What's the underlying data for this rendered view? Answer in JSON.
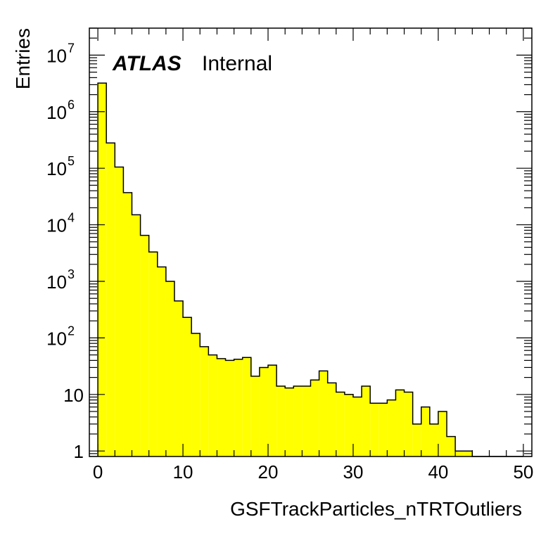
{
  "chart_data": {
    "type": "histogram",
    "x": [
      0,
      1,
      2,
      3,
      4,
      5,
      6,
      7,
      8,
      9,
      10,
      11,
      12,
      13,
      14,
      15,
      16,
      17,
      18,
      19,
      20,
      21,
      22,
      23,
      24,
      25,
      26,
      27,
      28,
      29,
      30,
      31,
      32,
      33,
      34,
      35,
      36,
      37,
      38,
      39,
      40,
      41,
      42,
      43,
      44,
      45,
      46,
      47,
      48,
      49
    ],
    "values": [
      3200000,
      280000,
      105000,
      37000,
      15000,
      6500,
      3300,
      1800,
      1000,
      450,
      230,
      120,
      70,
      50,
      43,
      40,
      42,
      45,
      21,
      30,
      33,
      14,
      13,
      14,
      14,
      18,
      26,
      16,
      11,
      10,
      9,
      14,
      7,
      7,
      8,
      12,
      11,
      3,
      6,
      3,
      5,
      1.8,
      1,
      1,
      0,
      0,
      0,
      0,
      0,
      0
    ],
    "bin_width": 1,
    "xlim": [
      -1,
      51
    ],
    "ylim": [
      0.8,
      30000000
    ],
    "ylog": true,
    "xlabel": "GSFTrackParticles_nTRTOutliers",
    "ylabel": "Entries",
    "xticks": [
      "0",
      "10",
      "20",
      "30",
      "40",
      "50"
    ],
    "yticks": [
      {
        "base": "1",
        "exp": ""
      },
      {
        "base": "10",
        "exp": ""
      },
      {
        "base": "10",
        "exp": "2"
      },
      {
        "base": "10",
        "exp": "3"
      },
      {
        "base": "10",
        "exp": "4"
      },
      {
        "base": "10",
        "exp": "5"
      },
      {
        "base": "10",
        "exp": "6"
      },
      {
        "base": "10",
        "exp": "7"
      }
    ],
    "fill_color": "#ffff00",
    "line_color": "#000000",
    "grid": false
  },
  "label": {
    "experiment": "ATLAS",
    "status": "Internal"
  }
}
